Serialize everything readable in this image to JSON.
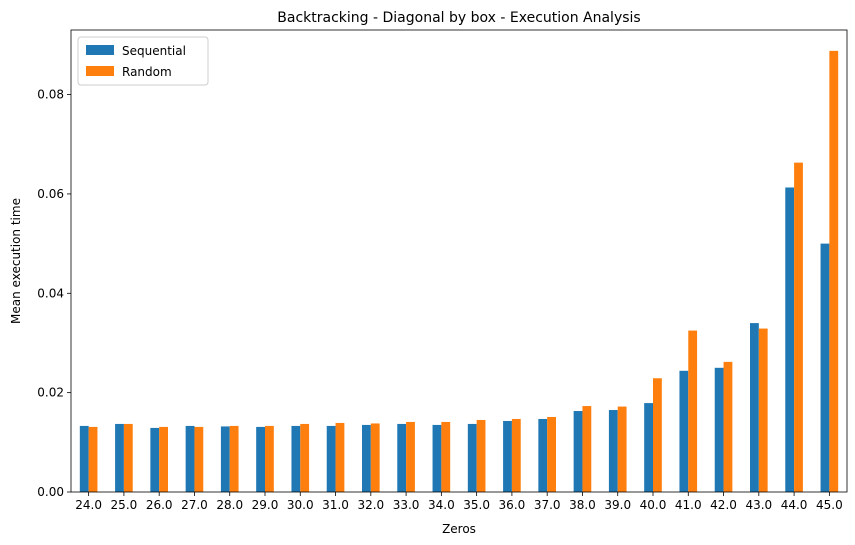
{
  "chart_data": {
    "type": "bar",
    "title": "Backtracking - Diagonal by box - Execution Analysis",
    "xlabel": "Zeros",
    "ylabel": "Mean execution time",
    "categories": [
      "24.0",
      "25.0",
      "26.0",
      "27.0",
      "28.0",
      "29.0",
      "30.0",
      "31.0",
      "32.0",
      "33.0",
      "34.0",
      "35.0",
      "36.0",
      "37.0",
      "38.0",
      "39.0",
      "40.0",
      "41.0",
      "42.0",
      "43.0",
      "44.0",
      "45.0"
    ],
    "series": [
      {
        "name": "Sequential",
        "color": "#1f77b4",
        "values": [
          0.0133,
          0.0137,
          0.0129,
          0.0133,
          0.0132,
          0.0131,
          0.0133,
          0.0133,
          0.0135,
          0.0137,
          0.0135,
          0.0137,
          0.0143,
          0.0147,
          0.0163,
          0.0165,
          0.0179,
          0.0244,
          0.025,
          0.034,
          0.0613,
          0.05
        ]
      },
      {
        "name": "Random",
        "color": "#ff7f0e",
        "values": [
          0.0131,
          0.0137,
          0.0131,
          0.0131,
          0.0133,
          0.0133,
          0.0137,
          0.0139,
          0.0138,
          0.0141,
          0.0141,
          0.0145,
          0.0147,
          0.0151,
          0.0173,
          0.0172,
          0.0229,
          0.0325,
          0.0262,
          0.0329,
          0.0663,
          0.0888
        ]
      }
    ],
    "ylim": [
      0,
      0.093
    ],
    "yticks": [
      "0.00",
      "0.02",
      "0.04",
      "0.06",
      "0.08"
    ],
    "ytick_values": [
      0,
      0.02,
      0.04,
      0.06,
      0.08
    ],
    "legend_position": "top-left",
    "grid": false
  }
}
